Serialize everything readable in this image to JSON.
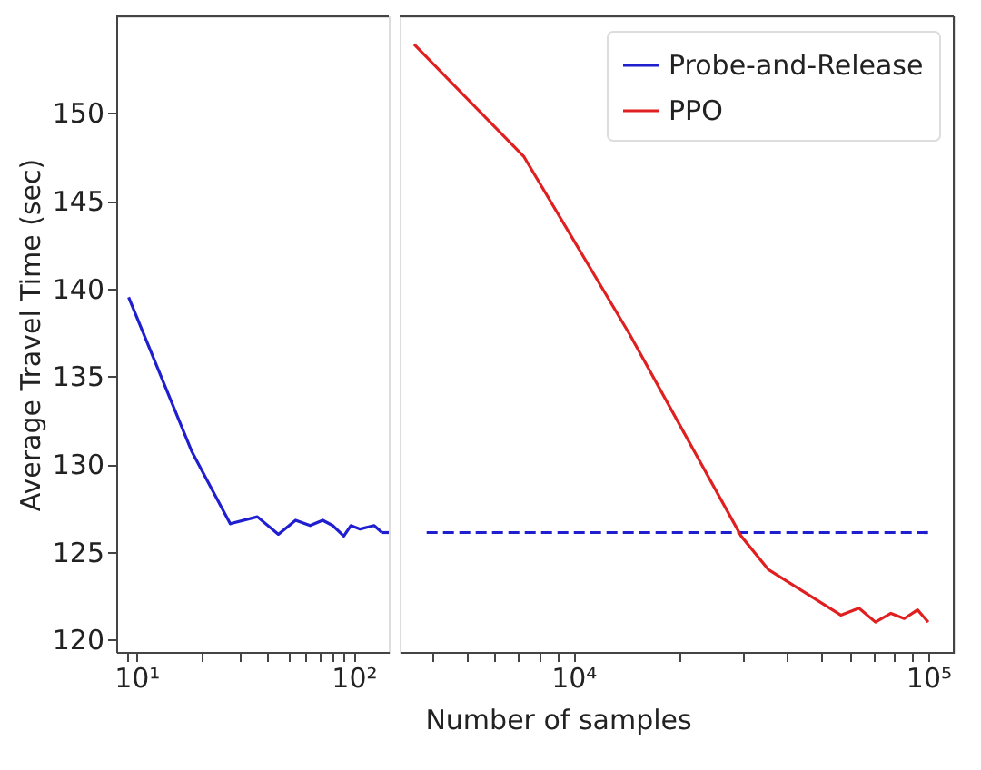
{
  "chart_data": [
    {
      "type": "line",
      "ylabel": "Average Travel Time (sec)",
      "xlim": [
        8.07,
        145
      ],
      "ylim": [
        119.3,
        155.5
      ],
      "log": "x",
      "grid": false,
      "legend": false,
      "marker": "none",
      "yticks": [
        120,
        125,
        130,
        135,
        140,
        145,
        150
      ],
      "xticks": [
        {
          "value": 9,
          "label": null
        },
        {
          "value": 10,
          "label": "10¹"
        },
        {
          "value": 20,
          "label": null
        },
        {
          "value": 30,
          "label": null
        },
        {
          "value": 40,
          "label": null
        },
        {
          "value": 50,
          "label": null
        },
        {
          "value": 60,
          "label": null
        },
        {
          "value": 70,
          "label": null
        },
        {
          "value": 80,
          "label": null
        },
        {
          "value": 90,
          "label": null
        },
        {
          "value": 100,
          "label": "10²"
        }
      ],
      "series": [
        {
          "color": "#1f1fd0",
          "line_style": "solid",
          "x": [
            9.2,
            18,
            27,
            36,
            45,
            54,
            63,
            72,
            80,
            90,
            97,
            107,
            124,
            135
          ],
          "values": [
            139.5,
            130.7,
            126.6,
            127.0,
            126.0,
            126.8,
            126.5,
            126.8,
            126.5,
            125.9,
            126.5,
            126.3,
            126.5,
            126.1
          ]
        },
        {
          "color": "#1f1fd0",
          "line_style": "dashed",
          "x": [
            135,
            145
          ],
          "values": [
            126.1,
            126.1
          ]
        }
      ]
    },
    {
      "type": "line",
      "xlabel": "Number of samples",
      "xlim": [
        3240,
        118000
      ],
      "ylim": [
        119.3,
        155.5
      ],
      "log": "x",
      "grid": false,
      "legend": "top right",
      "marker": "none",
      "tick_labels": "x",
      "xticks": [
        {
          "value": 4000,
          "label": null
        },
        {
          "value": 5000,
          "label": null
        },
        {
          "value": 6000,
          "label": null
        },
        {
          "value": 7000,
          "label": null
        },
        {
          "value": 8000,
          "label": null
        },
        {
          "value": 9000,
          "label": null
        },
        {
          "value": 10000,
          "label": "10⁴"
        },
        {
          "value": 20000,
          "label": null
        },
        {
          "value": 30000,
          "label": null
        },
        {
          "value": 40000,
          "label": null
        },
        {
          "value": 50000,
          "label": null
        },
        {
          "value": 60000,
          "label": null
        },
        {
          "value": 70000,
          "label": null
        },
        {
          "value": 80000,
          "label": null
        },
        {
          "value": 90000,
          "label": null
        },
        {
          "value": 100000,
          "label": "10⁵"
        }
      ],
      "series": [
        {
          "name": "Probe-and-Release",
          "color": "#1f1fd0",
          "line_style": "dashed",
          "x": [
            3860,
            100000
          ],
          "values": [
            126.1,
            126.1
          ]
        },
        {
          "name": "PPO",
          "color": "#e02020",
          "line_style": "solid",
          "x": [
            3560,
            7260,
            14400,
            29700,
            35400,
            56700,
            63800,
            71000,
            78500,
            85600,
            93300,
            100000
          ],
          "values": [
            153.9,
            147.5,
            137.4,
            125.9,
            124.0,
            121.4,
            121.8,
            121.0,
            121.5,
            121.2,
            121.7,
            121.0
          ]
        }
      ]
    }
  ]
}
